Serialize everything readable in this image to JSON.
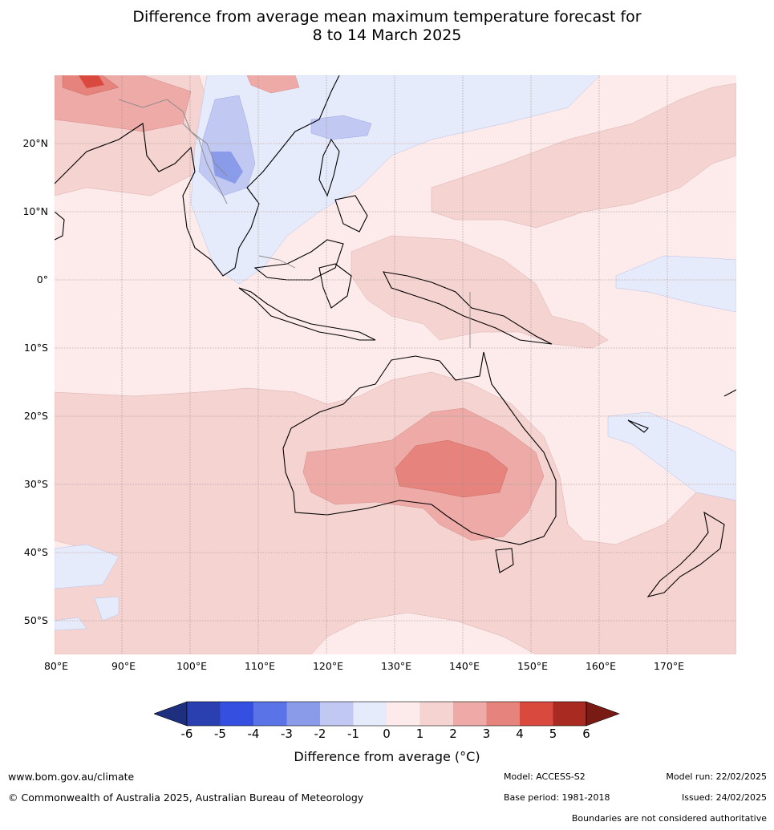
{
  "title_line1": "Difference from average mean maximum temperature forecast for",
  "title_line2": "8 to 14 March 2025",
  "lat_labels": [
    "20°N",
    "10°N",
    "0°",
    "10°S",
    "20°S",
    "30°S",
    "40°S",
    "50°S"
  ],
  "lon_labels": [
    "80°E",
    "90°E",
    "100°E",
    "110°E",
    "120°E",
    "130°E",
    "140°E",
    "150°E",
    "160°E",
    "170°E"
  ],
  "colorbar": {
    "ticks": [
      "-6",
      "-5",
      "-4",
      "-3",
      "-2",
      "-1",
      "0",
      "1",
      "2",
      "3",
      "4",
      "5",
      "6"
    ],
    "colors": [
      "#1f2f7f",
      "#2a3fb0",
      "#3550e0",
      "#5a73e6",
      "#8a9bea",
      "#c1c9f3",
      "#e6ebfb",
      "#fcebea",
      "#f5d3d1",
      "#edaaa6",
      "#e6837c",
      "#d9493e",
      "#a82a20",
      "#7a1a14"
    ],
    "label": "Difference from average (°C)"
  },
  "footer": {
    "website": "www.bom.gov.au/climate",
    "copyright": "© Commonwealth of Australia 2025, Australian Bureau of Meteorology",
    "model": "Model: ACCESS-S2",
    "base_period": "Base period: 1981-2018",
    "model_run": "Model run: 22/02/2025",
    "issued": "Issued: 24/02/2025",
    "disclaimer": "Boundaries are not considered authoritative"
  }
}
